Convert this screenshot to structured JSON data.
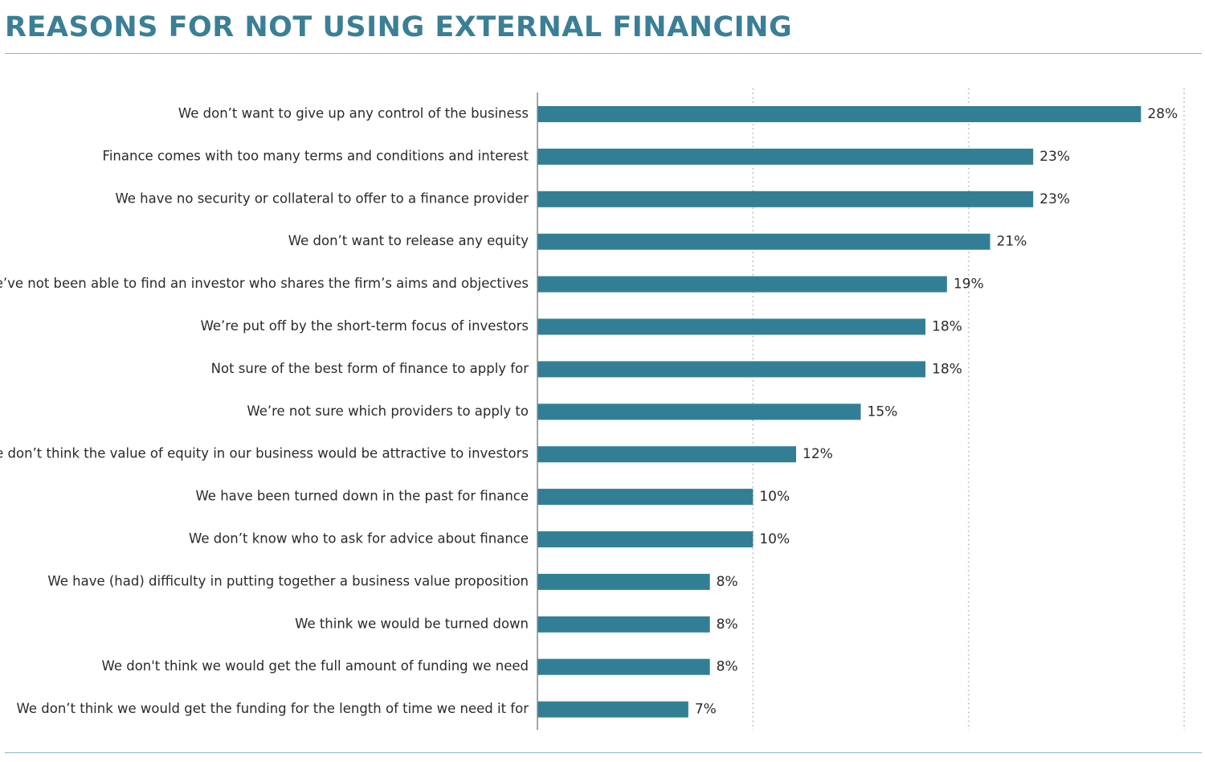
{
  "title": "REASONS FOR NOT USING EXTERNAL FINANCING",
  "colors": {
    "bar": "#327f95",
    "title": "#3a7f96",
    "grid": "#b0b0b0",
    "axis": "#888888",
    "text": "#2a2a2a"
  },
  "chart_data": {
    "type": "bar",
    "orientation": "horizontal",
    "title": "REASONS FOR NOT USING EXTERNAL FINANCING",
    "xlabel": "",
    "ylabel": "",
    "xlim": [
      0,
      30
    ],
    "gridlines": [
      10,
      20,
      30
    ],
    "grid": "dotted vertical",
    "legend": "none",
    "value_suffix": "%",
    "categories": [
      "We don’t want to give up any control of the business",
      "Finance comes with too many terms and conditions and interest",
      "We have no security or collateral to offer to a finance provider",
      "We don’t want to release any equity",
      "We’ve not been able to find an investor who shares the firm’s aims and objectives",
      "We’re put off by the short-term focus of investors",
      "Not sure of the best form of finance to apply for",
      "We’re not sure which providers to apply to",
      "We don’t think the value of equity in our business would be attractive to investors",
      "We have been turned down in the past for finance",
      "We don’t know who to ask for advice about finance",
      "We have (had) difficulty in putting together a business value proposition",
      "We think we would be turned down",
      "We don't think we would get the full amount of funding we need",
      "We don’t think we would get the funding for the length of time we need it for"
    ],
    "values": [
      28,
      23,
      23,
      21,
      19,
      18,
      18,
      15,
      12,
      10,
      10,
      8,
      8,
      8,
      7
    ],
    "value_labels": [
      "28%",
      "23%",
      "23%",
      "21%",
      "19%",
      "18%",
      "18%",
      "15%",
      "12%",
      "10%",
      "10%",
      "8%",
      "8%",
      "8%",
      "7%"
    ]
  }
}
